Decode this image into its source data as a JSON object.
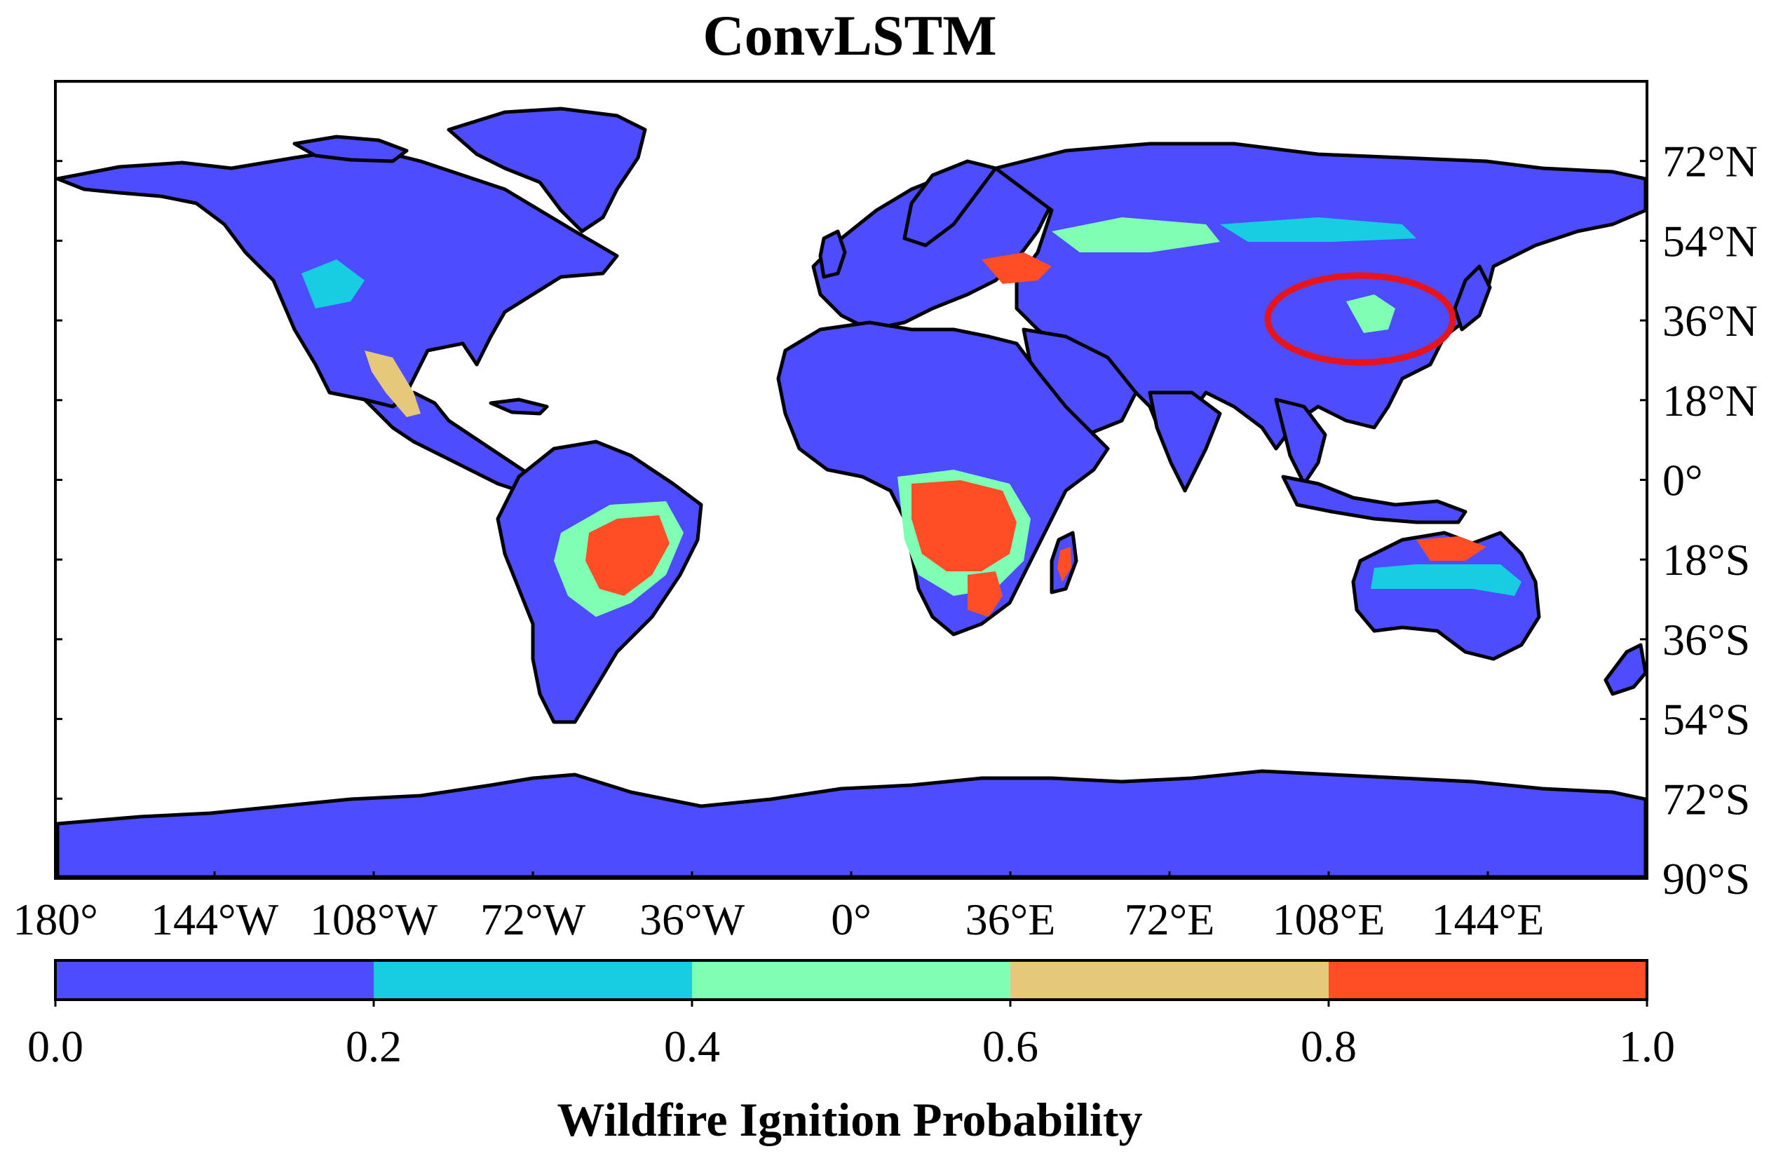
{
  "title": "ConvLSTM",
  "map": {
    "projection": "equirectangular",
    "lon_range": [
      -180,
      180
    ],
    "lat_range": [
      -90,
      90
    ],
    "ocean_color": "#ffffff",
    "land_color": "#4d4dff",
    "coastline_color": "#000000",
    "lat_ticks": [
      "72°N",
      "54°N",
      "36°N",
      "18°N",
      "0°",
      "18°S",
      "36°S",
      "54°S",
      "72°S",
      "90°S"
    ],
    "lon_ticks": [
      "180°",
      "144°W",
      "108°W",
      "72°W",
      "36°W",
      "0°",
      "36°E",
      "72°E",
      "108°E",
      "144°E"
    ],
    "highlight": {
      "shape": "ellipse",
      "color": "#e8141c",
      "region": "North China Plain"
    },
    "hotspot_regions": [
      {
        "region": "Central Africa (Angola / Zambia / DR Congo)",
        "level": "0.8-1.0"
      },
      {
        "region": "Central Brazil (Cerrado)",
        "level": "0.8-1.0"
      },
      {
        "region": "Southern Africa",
        "level": "0.8-1.0"
      },
      {
        "region": "Madagascar",
        "level": "0.8-1.0"
      },
      {
        "region": "Northern Australia",
        "level": "0.8-1.0"
      },
      {
        "region": "Eastern Europe / Ukraine",
        "level": "0.8-1.0"
      },
      {
        "region": "Western Mexico",
        "level": "0.6-0.8"
      },
      {
        "region": "Kazakhstan steppe",
        "level": "0.4-0.6"
      },
      {
        "region": "North China Plain",
        "level": "0.4-0.6"
      }
    ]
  },
  "colorbar": {
    "label": "Wildfire Ignition Probability",
    "ticks": [
      "0.0",
      "0.2",
      "0.4",
      "0.6",
      "0.8",
      "1.0"
    ],
    "bins": [
      {
        "range": [
          0.0,
          0.2
        ],
        "color": "#4d4dff"
      },
      {
        "range": [
          0.2,
          0.4
        ],
        "color": "#18cce2"
      },
      {
        "range": [
          0.4,
          0.6
        ],
        "color": "#7fffb4"
      },
      {
        "range": [
          0.6,
          0.8
        ],
        "color": "#e6c87a"
      },
      {
        "range": [
          0.8,
          1.0
        ],
        "color": "#ff4d26"
      }
    ]
  }
}
